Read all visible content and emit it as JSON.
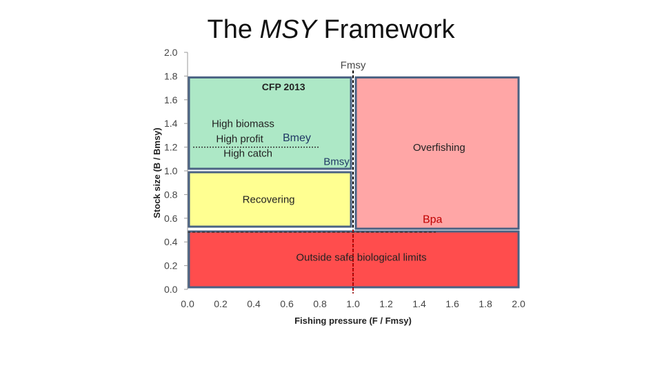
{
  "slide": {
    "title_prefix": "The ",
    "title_italic": "MSY",
    "title_suffix": " Framework"
  },
  "chart_data": {
    "type": "scatter",
    "xlabel": "Fishing pressure (F / Fmsy)",
    "ylabel": "Stock size (B / Bmsy)",
    "xlim": [
      0.0,
      2.0
    ],
    "ylim": [
      0.0,
      2.0
    ],
    "xticks": [
      "0.0",
      "0.2",
      "0.4",
      "0.6",
      "0.8",
      "1.0",
      "1.2",
      "1.4",
      "1.6",
      "1.8",
      "2.0"
    ],
    "yticks": [
      "0.0",
      "0.2",
      "0.4",
      "0.6",
      "0.8",
      "1.0",
      "1.2",
      "1.4",
      "1.6",
      "1.8",
      "2.0"
    ],
    "grid": false,
    "zones": [
      {
        "key": "green",
        "label": "",
        "x0": 0.0,
        "x1": 1.0,
        "y0": 1.0,
        "y1": 1.8,
        "fill": "#ade8c6"
      },
      {
        "key": "pink",
        "label": "Overfishing",
        "x0": 1.0,
        "x1": 2.0,
        "y0": 0.5,
        "y1": 1.8,
        "fill": "#ffa6a6"
      },
      {
        "key": "yellow",
        "label": "Recovering",
        "x0": 0.0,
        "x1": 1.0,
        "y0": 0.5,
        "y1": 1.0,
        "fill": "#ffff91"
      },
      {
        "key": "red",
        "label": "Outside safe biological limits",
        "x0": 0.0,
        "x1": 2.0,
        "y0": 0.0,
        "y1": 0.5,
        "fill": "#ff4d4d"
      }
    ],
    "green_zone_text": {
      "heading": "CFP 2013",
      "lines": [
        "High biomass",
        "High profit",
        "High catch"
      ]
    },
    "reference_lines": [
      {
        "name": "Fmsy",
        "axis": "x",
        "value": 1.0,
        "color": "#c00000"
      },
      {
        "name": "Bmey",
        "axis": "y",
        "value": 1.2,
        "color": "#333333"
      },
      {
        "name": "Bmsy",
        "axis": "y",
        "value": 1.0,
        "color": "#1f3864"
      },
      {
        "name": "Bpa",
        "axis": "y",
        "value": 0.5,
        "color": "#333333"
      }
    ],
    "colors": {
      "zone_border": "#4a6283",
      "axis": "#999999",
      "tick_text": "#444444",
      "label_text": "#222222",
      "bmey_text": "#1f3864",
      "bpa_text": "#c00000"
    }
  }
}
